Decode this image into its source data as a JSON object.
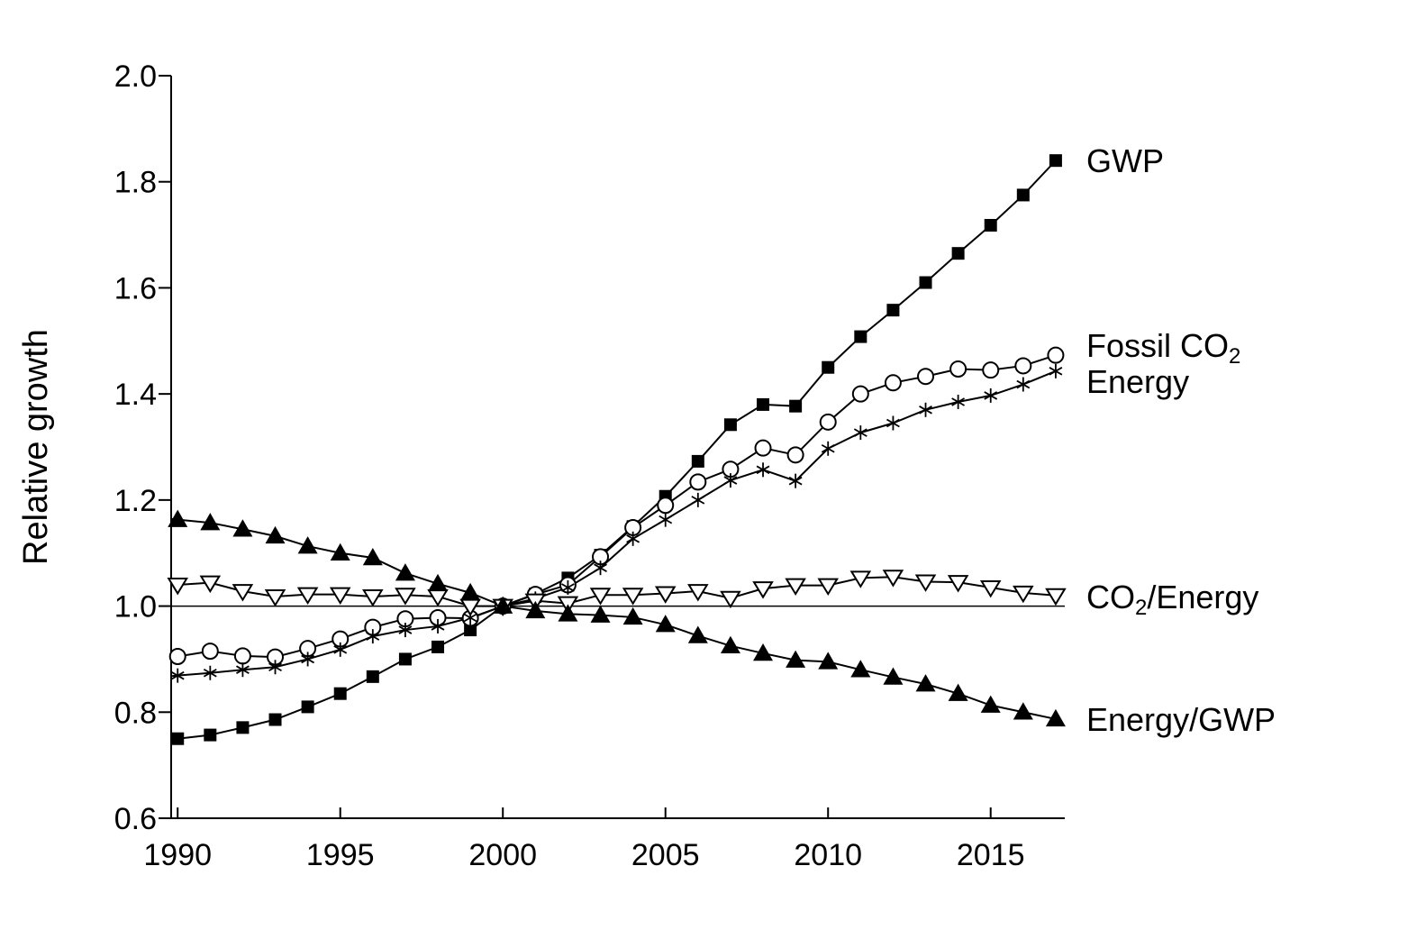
{
  "chart_data": {
    "type": "line",
    "title": "",
    "xlabel": "",
    "ylabel": "Relative growth",
    "xlim": [
      1989.8,
      2017
    ],
    "ylim": [
      0.6,
      2.0
    ],
    "xticks": [
      1990,
      1995,
      2000,
      2005,
      2010,
      2015
    ],
    "yticks": [
      "0.6",
      "0.8",
      "1.0",
      "1.2",
      "1.4",
      "1.6",
      "1.8",
      "2.0"
    ],
    "reference_line": 1.0,
    "grid": false,
    "legend": "labels at line ends",
    "x": [
      1990,
      1991,
      1992,
      1993,
      1994,
      1995,
      1996,
      1997,
      1998,
      1999,
      2000,
      2001,
      2002,
      2003,
      2004,
      2005,
      2006,
      2007,
      2008,
      2009,
      2010,
      2011,
      2012,
      2013,
      2014,
      2015,
      2016,
      2017
    ],
    "series": [
      {
        "name": "GWP",
        "marker": "filled-square",
        "values": [
          0.75,
          0.757,
          0.771,
          0.786,
          0.81,
          0.835,
          0.867,
          0.9,
          0.923,
          0.955,
          1.0,
          1.023,
          1.053,
          1.096,
          1.15,
          1.207,
          1.273,
          1.342,
          1.38,
          1.377,
          1.45,
          1.508,
          1.558,
          1.61,
          1.665,
          1.718,
          1.775,
          1.84
        ]
      },
      {
        "name_main": "Fossil CO",
        "name_sub": "2",
        "marker": "open-circle",
        "values": [
          0.905,
          0.915,
          0.906,
          0.904,
          0.92,
          0.938,
          0.96,
          0.976,
          0.978,
          0.977,
          1.0,
          1.022,
          1.04,
          1.093,
          1.148,
          1.19,
          1.234,
          1.258,
          1.298,
          1.285,
          1.347,
          1.4,
          1.421,
          1.433,
          1.447,
          1.445,
          1.453,
          1.473
        ]
      },
      {
        "name": "Energy",
        "marker": "asterisk",
        "values": [
          0.869,
          0.874,
          0.88,
          0.885,
          0.9,
          0.918,
          0.943,
          0.955,
          0.962,
          0.978,
          1.0,
          1.014,
          1.035,
          1.072,
          1.127,
          1.163,
          1.2,
          1.237,
          1.257,
          1.236,
          1.297,
          1.327,
          1.345,
          1.37,
          1.385,
          1.397,
          1.418,
          1.443
        ]
      },
      {
        "name_pre": "CO",
        "name_sub": "2",
        "name_post": "/Energy",
        "marker": "open-down-triangle",
        "values": [
          1.04,
          1.044,
          1.028,
          1.018,
          1.022,
          1.022,
          1.018,
          1.021,
          1.018,
          1.0,
          1.0,
          1.01,
          1.005,
          1.021,
          1.021,
          1.024,
          1.028,
          1.015,
          1.033,
          1.039,
          1.039,
          1.053,
          1.055,
          1.046,
          1.045,
          1.035,
          1.025,
          1.02
        ]
      },
      {
        "name": "Energy/GWP",
        "marker": "filled-up-triangle",
        "values": [
          1.163,
          1.157,
          1.145,
          1.132,
          1.113,
          1.1,
          1.091,
          1.062,
          1.042,
          1.025,
          1.0,
          0.991,
          0.985,
          0.983,
          0.979,
          0.965,
          0.944,
          0.925,
          0.911,
          0.898,
          0.895,
          0.88,
          0.866,
          0.853,
          0.835,
          0.813,
          0.8,
          0.787
        ]
      }
    ]
  }
}
